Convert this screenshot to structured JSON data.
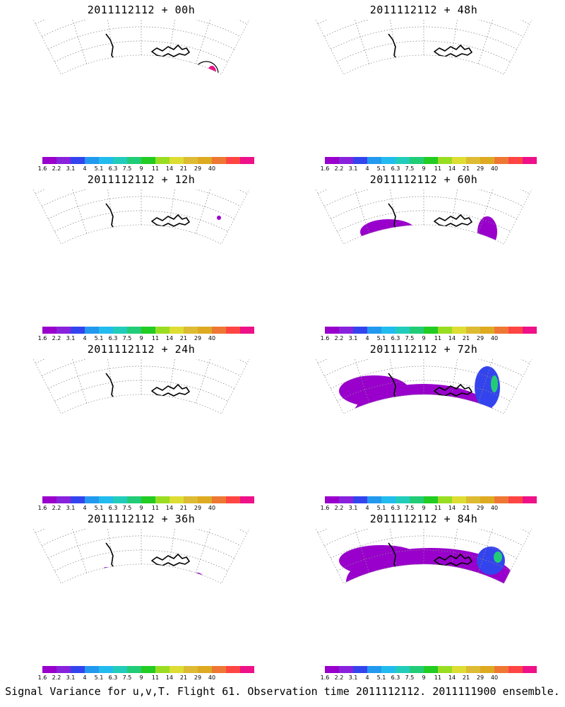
{
  "panels": [
    {
      "title": "2011112112 + 00h"
    },
    {
      "title": "2011112112 + 48h"
    },
    {
      "title": "2011112112 + 12h"
    },
    {
      "title": "2011112112 + 60h"
    },
    {
      "title": "2011112112 + 24h"
    },
    {
      "title": "2011112112 + 72h"
    },
    {
      "title": "2011112112 + 36h"
    },
    {
      "title": "2011112112 + 84h"
    }
  ],
  "colorbar": {
    "colors": [
      "#9900cc",
      "#8822dd",
      "#3344ee",
      "#2299ee",
      "#22bbee",
      "#22ccbb",
      "#22cc77",
      "#22cc22",
      "#99dd22",
      "#dddd33",
      "#ddbb33",
      "#ddaa22",
      "#ee7733",
      "#ff4444",
      "#ee1188"
    ],
    "ticks": [
      "1.6",
      "2.2",
      "3.1",
      "4",
      "5.1",
      "6.3",
      "7.5",
      "9",
      "11",
      "14",
      "21",
      "29",
      "40"
    ]
  },
  "footer": "Signal Variance for u,v,T. Flight 61. Observation time 2011112112. 2011111900 ensemble."
}
